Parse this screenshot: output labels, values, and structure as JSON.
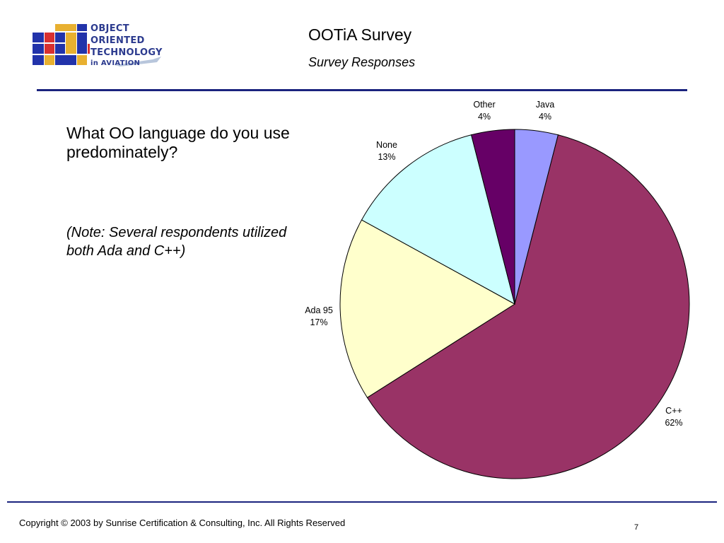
{
  "header": {
    "logo_lines": [
      "OBJECT",
      "ORIENTED",
      "TECHNOLOGY",
      "in AVIATION"
    ],
    "title": "OOTiA Survey",
    "subtitle": "Survey Responses"
  },
  "content": {
    "question": "What OO language do you use predominately?",
    "note": "(Note: Several respondents utilized both Ada and C++)"
  },
  "chart_data": {
    "type": "pie",
    "categories": [
      "Java",
      "C++",
      "Ada 95",
      "None",
      "Other"
    ],
    "values": [
      4,
      62,
      17,
      13,
      4
    ],
    "labels": [
      "4%",
      "62%",
      "17%",
      "13%",
      "4%"
    ],
    "colors": [
      "#9999ff",
      "#993366",
      "#ffffcc",
      "#ccffff",
      "#660066"
    ],
    "start_angle_deg": 0,
    "direction": "clockwise"
  },
  "footer": {
    "copyright": "Copyright © 2003 by Sunrise Certification & Consulting, Inc.  All Rights Reserved",
    "page_number": "7"
  }
}
